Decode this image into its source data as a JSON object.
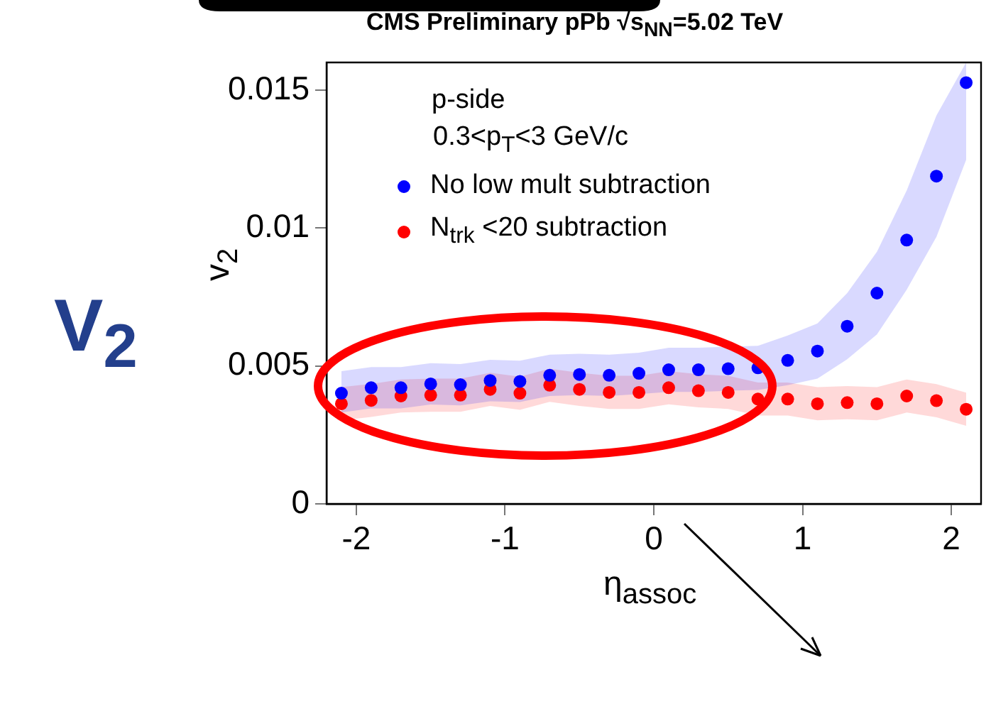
{
  "chart_data": {
    "type": "scatter",
    "title": "CMS Preliminary    pPb  √s$_{NN}$=5.02 TeV",
    "xlabel": "η$_{assoc}$",
    "ylabel": "v$_{2}$",
    "legend_title": "p-side",
    "annotations": [
      "0.3<p$_{T}$<3 GeV/c",
      "V$_{2}$"
    ],
    "x": [
      -2.1,
      -1.9,
      -1.7,
      -1.5,
      -1.3,
      -1.1,
      -0.9,
      -0.7,
      -0.5,
      -0.3,
      -0.1,
      0.1,
      0.3,
      0.5,
      0.7,
      0.9,
      1.1,
      1.3,
      1.5,
      1.7,
      1.9,
      2.1
    ],
    "xlim": [
      -2.2,
      2.2
    ],
    "xticks": [
      -2,
      -1,
      0,
      1,
      2
    ],
    "ylim": [
      0,
      0.016
    ],
    "yticks": [
      0,
      0.005,
      0.01,
      0.015
    ],
    "grid": false,
    "legend": "top left",
    "marker": "circle",
    "series": [
      {
        "name": "No low mult subtraction",
        "color": "#0000ff",
        "values": [
          0.00401,
          0.00421,
          0.00421,
          0.00435,
          0.00432,
          0.00447,
          0.00444,
          0.00466,
          0.00469,
          0.00466,
          0.00473,
          0.00486,
          0.00486,
          0.0049,
          0.00493,
          0.0052,
          0.00554,
          0.00644,
          0.00764,
          0.00956,
          0.01188,
          0.01527
        ],
        "lower": [
          0.00331,
          0.00346,
          0.00346,
          0.0036,
          0.00357,
          0.00372,
          0.00369,
          0.00391,
          0.00394,
          0.00391,
          0.00398,
          0.00406,
          0.00406,
          0.0041,
          0.00413,
          0.0043,
          0.00454,
          0.00524,
          0.00614,
          0.00776,
          0.00968,
          0.01247
        ],
        "upper": [
          0.00481,
          0.00496,
          0.00496,
          0.0051,
          0.00507,
          0.00522,
          0.00519,
          0.00541,
          0.00544,
          0.00541,
          0.00548,
          0.00566,
          0.00566,
          0.0057,
          0.00573,
          0.0061,
          0.00654,
          0.00764,
          0.00914,
          0.01136,
          0.01408,
          0.016
        ]
      },
      {
        "name": "N$_{trk}$ <20 subtraction",
        "color": "#ff0000",
        "values": [
          0.00363,
          0.00375,
          0.00391,
          0.00394,
          0.00394,
          0.00415,
          0.00401,
          0.0043,
          0.00415,
          0.00404,
          0.00404,
          0.00421,
          0.0041,
          0.00404,
          0.0038,
          0.0038,
          0.00363,
          0.00367,
          0.00363,
          0.00391,
          0.00374,
          0.00343
        ],
        "lower": [
          0.00303,
          0.00315,
          0.00331,
          0.00334,
          0.00334,
          0.00355,
          0.00341,
          0.0037,
          0.00355,
          0.00344,
          0.00344,
          0.00361,
          0.0035,
          0.00344,
          0.0032,
          0.0032,
          0.00303,
          0.00307,
          0.00303,
          0.00331,
          0.00314,
          0.00283
        ],
        "upper": [
          0.00423,
          0.00435,
          0.00451,
          0.00454,
          0.00454,
          0.00475,
          0.00461,
          0.0049,
          0.00475,
          0.00464,
          0.00464,
          0.00481,
          0.0047,
          0.00464,
          0.0044,
          0.0044,
          0.00423,
          0.00427,
          0.00423,
          0.00451,
          0.00434,
          0.00403
        ]
      }
    ]
  }
}
